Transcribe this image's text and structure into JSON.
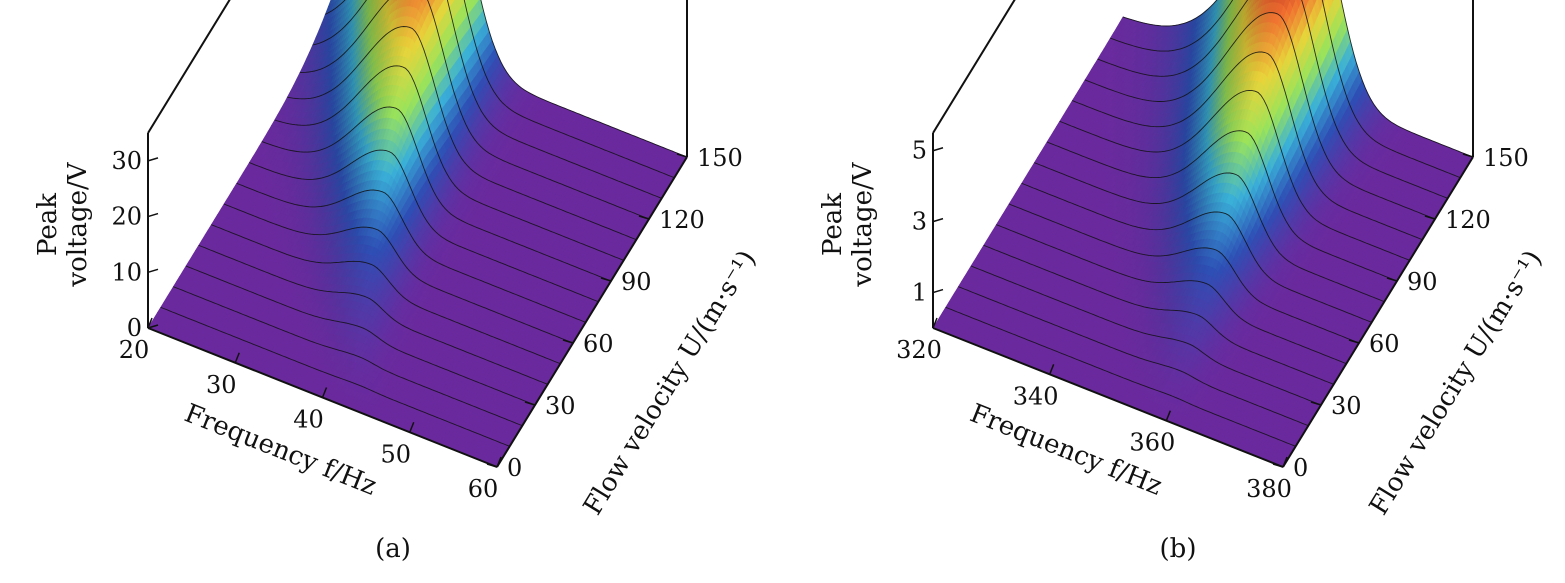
{
  "chart_data": [
    {
      "panel": "(a)",
      "type": "surface3d",
      "x_label": "Frequency f/Hz",
      "y_label": "Flow velocity U/(m·s⁻¹)",
      "z_label": [
        "Peak",
        "voltage/V"
      ],
      "x_ticks": [
        "20",
        "30",
        "40",
        "50",
        "60"
      ],
      "y_ticks": [
        "0",
        "30",
        "60",
        "90",
        "120",
        "150"
      ],
      "z_ticks": [
        "0",
        "10",
        "20",
        "30"
      ],
      "xlim": [
        20,
        60
      ],
      "ylim": [
        0,
        150
      ],
      "zlim": [
        0,
        35
      ],
      "peak_frequency_base": 46,
      "peak_frequency_top": 32,
      "peak_voltage_max": 33,
      "colormap": [
        "#6a2a9e",
        "#2e4fb5",
        "#3ab0d8",
        "#9be35a",
        "#e8d43a",
        "#f07030",
        "#b02020"
      ]
    },
    {
      "panel": "(b)",
      "type": "surface3d",
      "x_label": "Frequency f/Hz",
      "y_label": "Flow velocity U/(m·s⁻¹)",
      "z_label": [
        "Peak",
        "voltage/V"
      ],
      "x_ticks": [
        "320",
        "340",
        "360",
        "380"
      ],
      "y_ticks": [
        "0",
        "30",
        "60",
        "90",
        "120",
        "150"
      ],
      "z_ticks": [
        "1",
        "3",
        "5"
      ],
      "xlim": [
        320,
        380
      ],
      "ylim": [
        0,
        150
      ],
      "zlim": [
        0,
        5.5
      ],
      "peak_frequency_base": 361,
      "peak_frequency_top": 352,
      "peak_voltage_max": 5.3,
      "colormap": [
        "#6a2a9e",
        "#2e4fb5",
        "#3ab0d8",
        "#9be35a",
        "#e8d43a",
        "#f07030",
        "#b02020"
      ]
    }
  ]
}
